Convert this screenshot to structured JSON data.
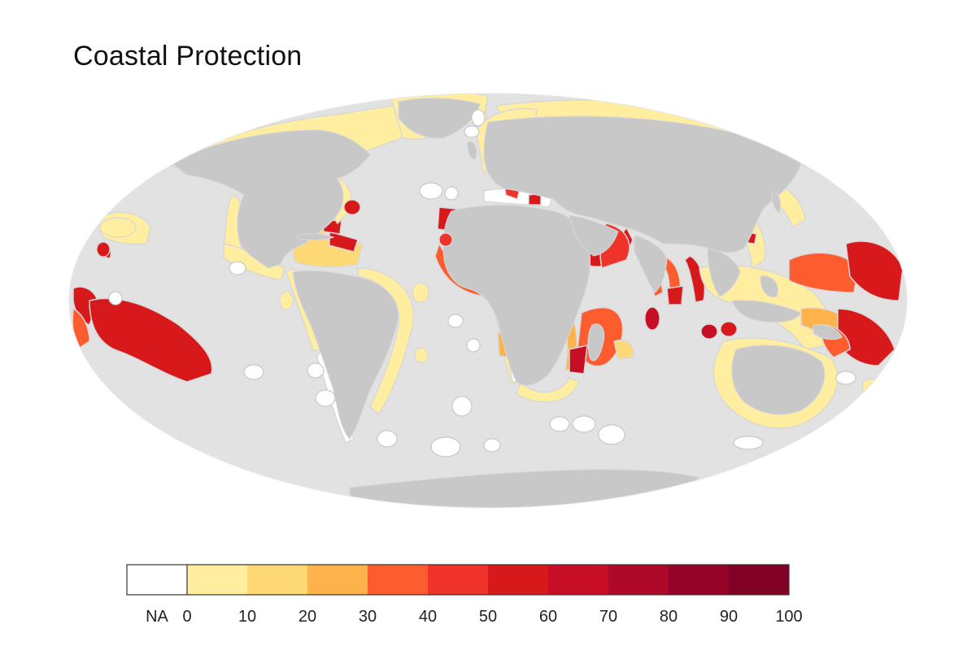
{
  "title": "Coastal Protection",
  "colors": {
    "ocean": "#e2e2e2",
    "land": "#c8c8c8",
    "border": "#d7d7d7",
    "na": "#ffffff"
  },
  "legend": {
    "na_label": "NA",
    "bins": [
      {
        "from": 0,
        "to": 10,
        "color": "#ffeda0"
      },
      {
        "from": 10,
        "to": 20,
        "color": "#fed976"
      },
      {
        "from": 20,
        "to": 30,
        "color": "#feb24c"
      },
      {
        "from": 30,
        "to": 40,
        "color": "#fd5c2e"
      },
      {
        "from": 40,
        "to": 50,
        "color": "#f0332a"
      },
      {
        "from": 50,
        "to": 60,
        "color": "#d7191c"
      },
      {
        "from": 60,
        "to": 70,
        "color": "#c80e25"
      },
      {
        "from": 70,
        "to": 80,
        "color": "#ad0828"
      },
      {
        "from": 80,
        "to": 90,
        "color": "#960328"
      },
      {
        "from": 90,
        "to": 100,
        "color": "#800026"
      }
    ],
    "tick_labels": [
      "0",
      "10",
      "20",
      "30",
      "40",
      "50",
      "60",
      "70",
      "80",
      "90",
      "100"
    ]
  }
}
